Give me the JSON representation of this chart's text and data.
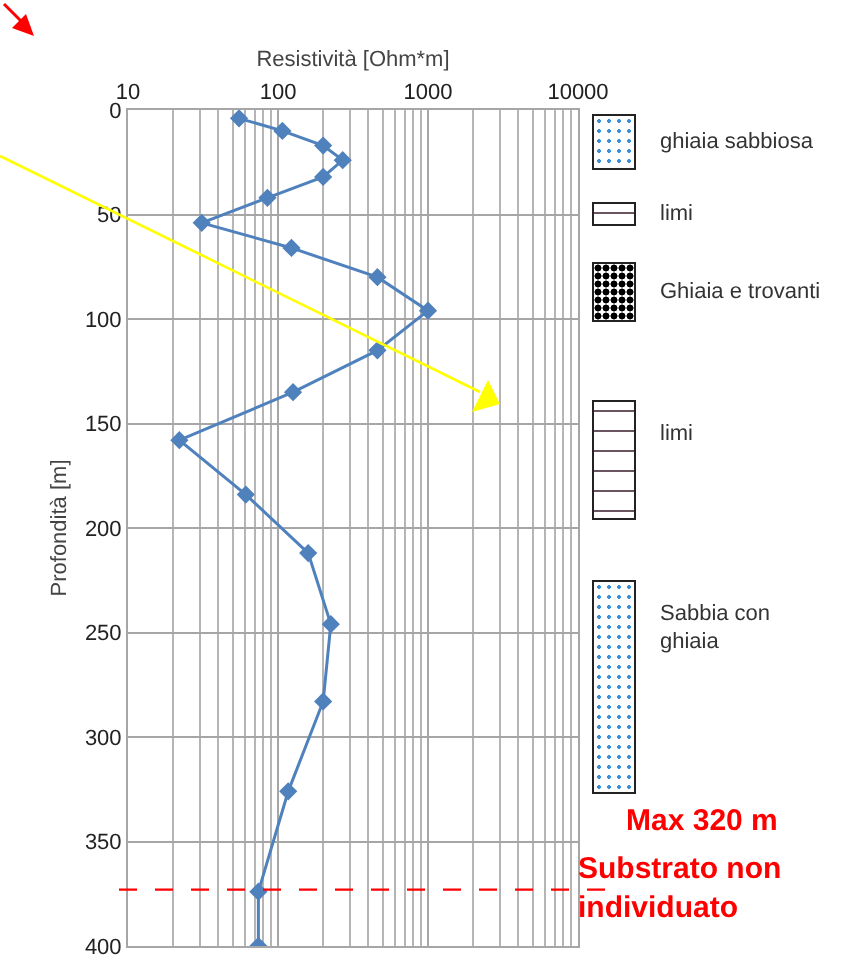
{
  "chart_data": {
    "type": "line",
    "xlabel": "Resistività [Ohm*m]",
    "ylabel": "Profondità [m]",
    "x": [
      55,
      107,
      200,
      270,
      200,
      85,
      31,
      123,
      460,
      1000,
      460,
      126,
      22,
      61,
      159,
      225,
      200,
      117,
      74,
      74
    ],
    "values": [
      4,
      10,
      17,
      24,
      32,
      42,
      54,
      66,
      80,
      96,
      115,
      135,
      158,
      184,
      212,
      246,
      283,
      326,
      374,
      400
    ],
    "color": "#4f81bd",
    "marker": "diamond",
    "line_style": "solid",
    "log": "x",
    "xlim": [
      10,
      10000
    ],
    "xticks": [
      10,
      100,
      1000,
      10000
    ],
    "ylim": [
      400,
      0
    ],
    "yticks": [
      0,
      50,
      100,
      150,
      200,
      250,
      300,
      350,
      400
    ],
    "grid": true,
    "ref_lines": [
      {
        "axis": "y",
        "value": 373,
        "label": "Substrato non\nindividuato",
        "color": "#ff0000",
        "line_style": "dashed"
      }
    ],
    "annotations": [
      "ghiaia sabbiosa",
      "limi",
      "Ghiaia e trovanti",
      "limi",
      "Sabbia con\nghiaia",
      "Max 320 m"
    ]
  }
}
